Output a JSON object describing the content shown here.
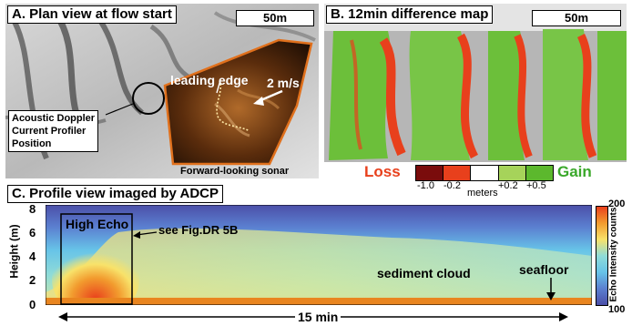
{
  "panel_a": {
    "title": "A. Plan view at flow start",
    "scale_bar": "50m",
    "leading_edge": "leading edge",
    "flow_speed": "2 m/s",
    "adcp_label": [
      "Acoustic Doppler",
      "Current Profiler",
      "Position"
    ],
    "sonar_caption": "Forward-looking sonar"
  },
  "panel_b": {
    "title": "B. 12min difference map",
    "scale_bar": "50m",
    "legend": {
      "loss_label": "Loss",
      "gain_label": "Gain",
      "unit": "meters",
      "ticks": [
        "-1.0",
        "-0.2",
        "+0.2",
        "+0.5"
      ],
      "colors": [
        "#7a0c0c",
        "#e8401c",
        "#ffffff",
        "#a6d35a",
        "#5cb82d"
      ]
    }
  },
  "panel_c": {
    "title": "C. Profile view imaged by ADCP",
    "y_axis_label": "Height (m)",
    "y_ticks": [
      "0",
      "2",
      "4",
      "6",
      "8"
    ],
    "high_echo": "High Echo",
    "see_fig": "see Fig.DR 5B",
    "sediment_cloud": "sediment cloud",
    "seafloor": "seafloor",
    "time_span": "15 min",
    "colorbar": {
      "label": "Echo Intensity counts",
      "max": "200",
      "min": "100"
    }
  },
  "chart_data": {
    "type": "heatmap",
    "title": "C. Profile view imaged by ADCP",
    "ylabel": "Height (m)",
    "ylim": [
      0,
      8.5
    ],
    "y_ticks": [
      0,
      2,
      4,
      6,
      8
    ],
    "x_span": "15 min",
    "colorbar": {
      "label": "Echo Intensity counts",
      "range": [
        100,
        200
      ]
    }
  }
}
